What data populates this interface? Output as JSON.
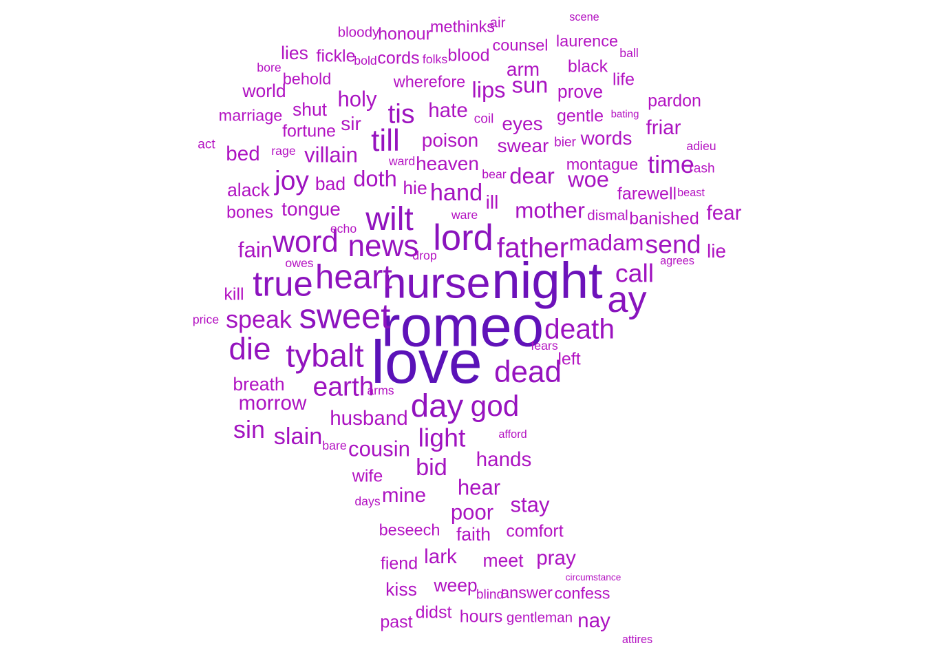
{
  "chart_data": {
    "type": "wordcloud",
    "words": [
      {
        "text": "love",
        "weight": 1.0
      },
      {
        "text": "romeo",
        "weight": 0.95
      },
      {
        "text": "night",
        "weight": 0.85
      },
      {
        "text": "nurse",
        "weight": 0.72
      },
      {
        "text": "ay",
        "weight": 0.62
      },
      {
        "text": "lord",
        "weight": 0.6
      },
      {
        "text": "true",
        "weight": 0.58
      },
      {
        "text": "sweet",
        "weight": 0.58
      },
      {
        "text": "heart",
        "weight": 0.56
      },
      {
        "text": "wilt",
        "weight": 0.55
      },
      {
        "text": "tybalt",
        "weight": 0.54
      },
      {
        "text": "day",
        "weight": 0.54
      },
      {
        "text": "die",
        "weight": 0.52
      },
      {
        "text": "news",
        "weight": 0.5
      },
      {
        "text": "word",
        "weight": 0.5
      },
      {
        "text": "till",
        "weight": 0.5
      },
      {
        "text": "dead",
        "weight": 0.5
      },
      {
        "text": "god",
        "weight": 0.48
      },
      {
        "text": "father",
        "weight": 0.46
      },
      {
        "text": "death",
        "weight": 0.46
      },
      {
        "text": "tis",
        "weight": 0.44
      },
      {
        "text": "joy",
        "weight": 0.44
      },
      {
        "text": "earth",
        "weight": 0.44
      },
      {
        "text": "send",
        "weight": 0.42
      },
      {
        "text": "call",
        "weight": 0.42
      },
      {
        "text": "light",
        "weight": 0.42
      },
      {
        "text": "speak",
        "weight": 0.4
      },
      {
        "text": "sin",
        "weight": 0.4
      },
      {
        "text": "time",
        "weight": 0.4
      },
      {
        "text": "slain",
        "weight": 0.38
      },
      {
        "text": "hand",
        "weight": 0.38
      },
      {
        "text": "bid",
        "weight": 0.38
      },
      {
        "text": "madam",
        "weight": 0.36
      },
      {
        "text": "mother",
        "weight": 0.36
      },
      {
        "text": "dear",
        "weight": 0.36
      },
      {
        "text": "woe",
        "weight": 0.36
      },
      {
        "text": "sun",
        "weight": 0.36
      },
      {
        "text": "doth",
        "weight": 0.36
      },
      {
        "text": "lips",
        "weight": 0.36
      },
      {
        "text": "holy",
        "weight": 0.34
      },
      {
        "text": "fain",
        "weight": 0.34
      },
      {
        "text": "villain",
        "weight": 0.34
      },
      {
        "text": "stay",
        "weight": 0.34
      },
      {
        "text": "poor",
        "weight": 0.34
      },
      {
        "text": "cousin",
        "weight": 0.34
      },
      {
        "text": "hear",
        "weight": 0.34
      },
      {
        "text": "husband",
        "weight": 0.32
      },
      {
        "text": "morrow",
        "weight": 0.32
      },
      {
        "text": "hands",
        "weight": 0.32
      },
      {
        "text": "mine",
        "weight": 0.32
      },
      {
        "text": "fear",
        "weight": 0.32
      },
      {
        "text": "friar",
        "weight": 0.32
      },
      {
        "text": "bed",
        "weight": 0.32
      },
      {
        "text": "lark",
        "weight": 0.32
      },
      {
        "text": "pray",
        "weight": 0.32
      },
      {
        "text": "nay",
        "weight": 0.32
      },
      {
        "text": "hate",
        "weight": 0.32
      },
      {
        "text": "words",
        "weight": 0.3
      },
      {
        "text": "eyes",
        "weight": 0.3
      },
      {
        "text": "swear",
        "weight": 0.3
      },
      {
        "text": "poison",
        "weight": 0.3
      },
      {
        "text": "heaven",
        "weight": 0.3
      },
      {
        "text": "tongue",
        "weight": 0.3
      },
      {
        "text": "ill",
        "weight": 0.3
      },
      {
        "text": "sir",
        "weight": 0.3
      },
      {
        "text": "shut",
        "weight": 0.28
      },
      {
        "text": "arm",
        "weight": 0.3
      },
      {
        "text": "prove",
        "weight": 0.28
      },
      {
        "text": "lies",
        "weight": 0.28
      },
      {
        "text": "world",
        "weight": 0.28
      },
      {
        "text": "alack",
        "weight": 0.28
      },
      {
        "text": "bad",
        "weight": 0.28
      },
      {
        "text": "hie",
        "weight": 0.28
      },
      {
        "text": "breath",
        "weight": 0.28
      },
      {
        "text": "faith",
        "weight": 0.28
      },
      {
        "text": "meet",
        "weight": 0.28
      },
      {
        "text": "weep",
        "weight": 0.28
      },
      {
        "text": "kiss",
        "weight": 0.28
      },
      {
        "text": "wife",
        "weight": 0.26
      },
      {
        "text": "fiend",
        "weight": 0.26
      },
      {
        "text": "beseech",
        "weight": 0.24
      },
      {
        "text": "comfort",
        "weight": 0.26
      },
      {
        "text": "hours",
        "weight": 0.26
      },
      {
        "text": "past",
        "weight": 0.26
      },
      {
        "text": "didst",
        "weight": 0.26
      },
      {
        "text": "answer",
        "weight": 0.24
      },
      {
        "text": "confess",
        "weight": 0.24
      },
      {
        "text": "farewell",
        "weight": 0.26
      },
      {
        "text": "banished",
        "weight": 0.26
      },
      {
        "text": "montague",
        "weight": 0.24
      },
      {
        "text": "gentle",
        "weight": 0.26
      },
      {
        "text": "fortune",
        "weight": 0.26
      },
      {
        "text": "marriage",
        "weight": 0.24
      },
      {
        "text": "behold",
        "weight": 0.24
      },
      {
        "text": "wherefore",
        "weight": 0.24
      },
      {
        "text": "black",
        "weight": 0.26
      },
      {
        "text": "life",
        "weight": 0.26
      },
      {
        "text": "pardon",
        "weight": 0.26
      },
      {
        "text": "laurence",
        "weight": 0.24
      },
      {
        "text": "counsel",
        "weight": 0.24
      },
      {
        "text": "blood",
        "weight": 0.26
      },
      {
        "text": "cords",
        "weight": 0.26
      },
      {
        "text": "fickle",
        "weight": 0.26
      },
      {
        "text": "honour",
        "weight": 0.26
      },
      {
        "text": "methinks",
        "weight": 0.24
      },
      {
        "text": "bones",
        "weight": 0.26
      },
      {
        "text": "lie",
        "weight": 0.3
      },
      {
        "text": "left",
        "weight": 0.26
      },
      {
        "text": "kill",
        "weight": 0.26
      },
      {
        "text": "dismal",
        "weight": 0.2
      },
      {
        "text": "bloody",
        "weight": 0.2
      },
      {
        "text": "air",
        "weight": 0.2
      },
      {
        "text": "bold",
        "weight": 0.16
      },
      {
        "text": "folks",
        "weight": 0.16
      },
      {
        "text": "bore",
        "weight": 0.16
      },
      {
        "text": "ball",
        "weight": 0.16
      },
      {
        "text": "scene",
        "weight": 0.14
      },
      {
        "text": "coil",
        "weight": 0.18
      },
      {
        "text": "bating",
        "weight": 0.12
      },
      {
        "text": "act",
        "weight": 0.18
      },
      {
        "text": "rage",
        "weight": 0.16
      },
      {
        "text": "ward",
        "weight": 0.16
      },
      {
        "text": "bier",
        "weight": 0.18
      },
      {
        "text": "adieu",
        "weight": 0.16
      },
      {
        "text": "rash",
        "weight": 0.18
      },
      {
        "text": "bear",
        "weight": 0.16
      },
      {
        "text": "beast",
        "weight": 0.14
      },
      {
        "text": "ware",
        "weight": 0.16
      },
      {
        "text": "echo",
        "weight": 0.16
      },
      {
        "text": "drop",
        "weight": 0.16
      },
      {
        "text": "owes",
        "weight": 0.16
      },
      {
        "text": "agrees",
        "weight": 0.14
      },
      {
        "text": "price",
        "weight": 0.16
      },
      {
        "text": "fears",
        "weight": 0.16
      },
      {
        "text": "arms",
        "weight": 0.16
      },
      {
        "text": "afford",
        "weight": 0.14
      },
      {
        "text": "bare",
        "weight": 0.16
      },
      {
        "text": "days",
        "weight": 0.16
      },
      {
        "text": "circumstance",
        "weight": 0.1
      },
      {
        "text": "blind",
        "weight": 0.18
      },
      {
        "text": "gentleman",
        "weight": 0.2
      },
      {
        "text": "attires",
        "weight": 0.14
      }
    ]
  },
  "colors": {
    "darkest": "#5a12b8",
    "lightest": "#b413c2"
  }
}
